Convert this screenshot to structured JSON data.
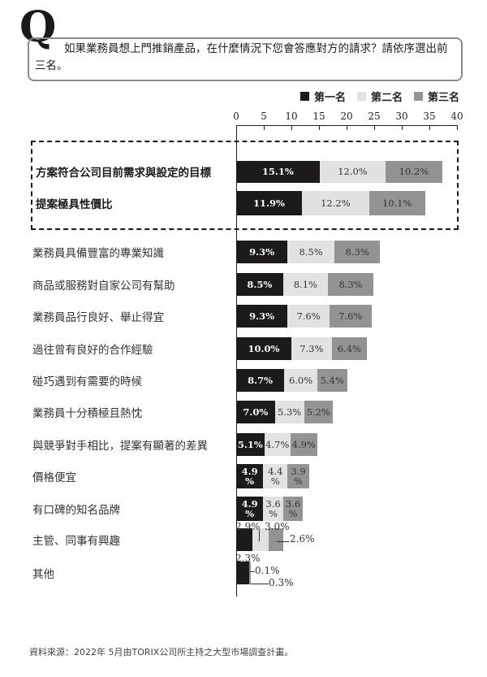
{
  "question": {
    "marker": "Q",
    "text": "如果業務員想上門推銷產品，在什麼情況下您會答應對方的請求？請依序選出前三名。"
  },
  "legend": [
    {
      "label": "第一名",
      "color": "#1d1a1b"
    },
    {
      "label": "第二名",
      "color": "#e2e2e2"
    },
    {
      "label": "第三名",
      "color": "#939393"
    }
  ],
  "chart_data": {
    "type": "bar",
    "orientation": "horizontal",
    "stacked": true,
    "title": "如果業務員想上門推銷產品，在什麼情況下您會答應對方的請求？請依序選出前三名。",
    "xlabel": "",
    "ylabel": "",
    "xlim": [
      0,
      40
    ],
    "x_ticks": [
      0,
      5,
      10,
      15,
      20,
      25,
      30,
      35,
      40
    ],
    "legend_position": "top-right",
    "grid": false,
    "categories": [
      "方案符合公司目前需求與設定的目標",
      "提案極具性價比",
      "業務員具備豐富的專業知識",
      "商品或服務對自家公司有幫助",
      "業務員品行良好、舉止得宜",
      "過往曾有良好的合作經驗",
      "碰巧遇到有需要的時候",
      "業務員十分積極且熱忱",
      "與競爭對手相比，提案有顯著的差異",
      "價格便宜",
      "有口碑的知名品牌",
      "主管、同事有興趣",
      "其他"
    ],
    "highlighted_categories": [
      "方案符合公司目前需求與設定的目標",
      "提案極具性價比"
    ],
    "series": [
      {
        "name": "第一名",
        "values": [
          15.1,
          11.9,
          9.3,
          8.5,
          9.3,
          10.0,
          8.7,
          7.0,
          5.1,
          4.9,
          4.9,
          2.9,
          2.3
        ]
      },
      {
        "name": "第二名",
        "values": [
          12.0,
          12.2,
          8.5,
          8.1,
          7.6,
          7.3,
          6.0,
          5.3,
          4.7,
          4.4,
          3.6,
          3.0,
          0.1
        ]
      },
      {
        "name": "第三名",
        "values": [
          10.2,
          10.1,
          8.3,
          8.3,
          7.6,
          6.4,
          5.4,
          5.2,
          4.9,
          3.9,
          3.6,
          2.6,
          0.3
        ]
      }
    ],
    "value_labels": [
      [
        "15.1%",
        "12.0%",
        "10.2%"
      ],
      [
        "11.9%",
        "12.2%",
        "10.1%"
      ],
      [
        "9.3%",
        "8.5%",
        "8.3%"
      ],
      [
        "8.5%",
        "8.1%",
        "8.3%"
      ],
      [
        "9.3%",
        "7.6%",
        "7.6%"
      ],
      [
        "10.0%",
        "7.3%",
        "6.4%"
      ],
      [
        "8.7%",
        "6.0%",
        "5.4%"
      ],
      [
        "7.0%",
        "5.3%",
        "5.2%"
      ],
      [
        "5.1%",
        "4.7%",
        "4.9%"
      ],
      [
        "4.9\n%",
        "4.4\n%",
        "3.9\n%"
      ],
      [
        "4.9\n%",
        "3.6\n%",
        "3.6\n%"
      ],
      [
        "2.9%",
        "3.0%",
        "2.6%"
      ],
      [
        "2.3%",
        "0.1%",
        "0.3%"
      ]
    ]
  },
  "source": "資料來源：2022年 5月由TORIX公司所主持之大型市場調查計畫。"
}
